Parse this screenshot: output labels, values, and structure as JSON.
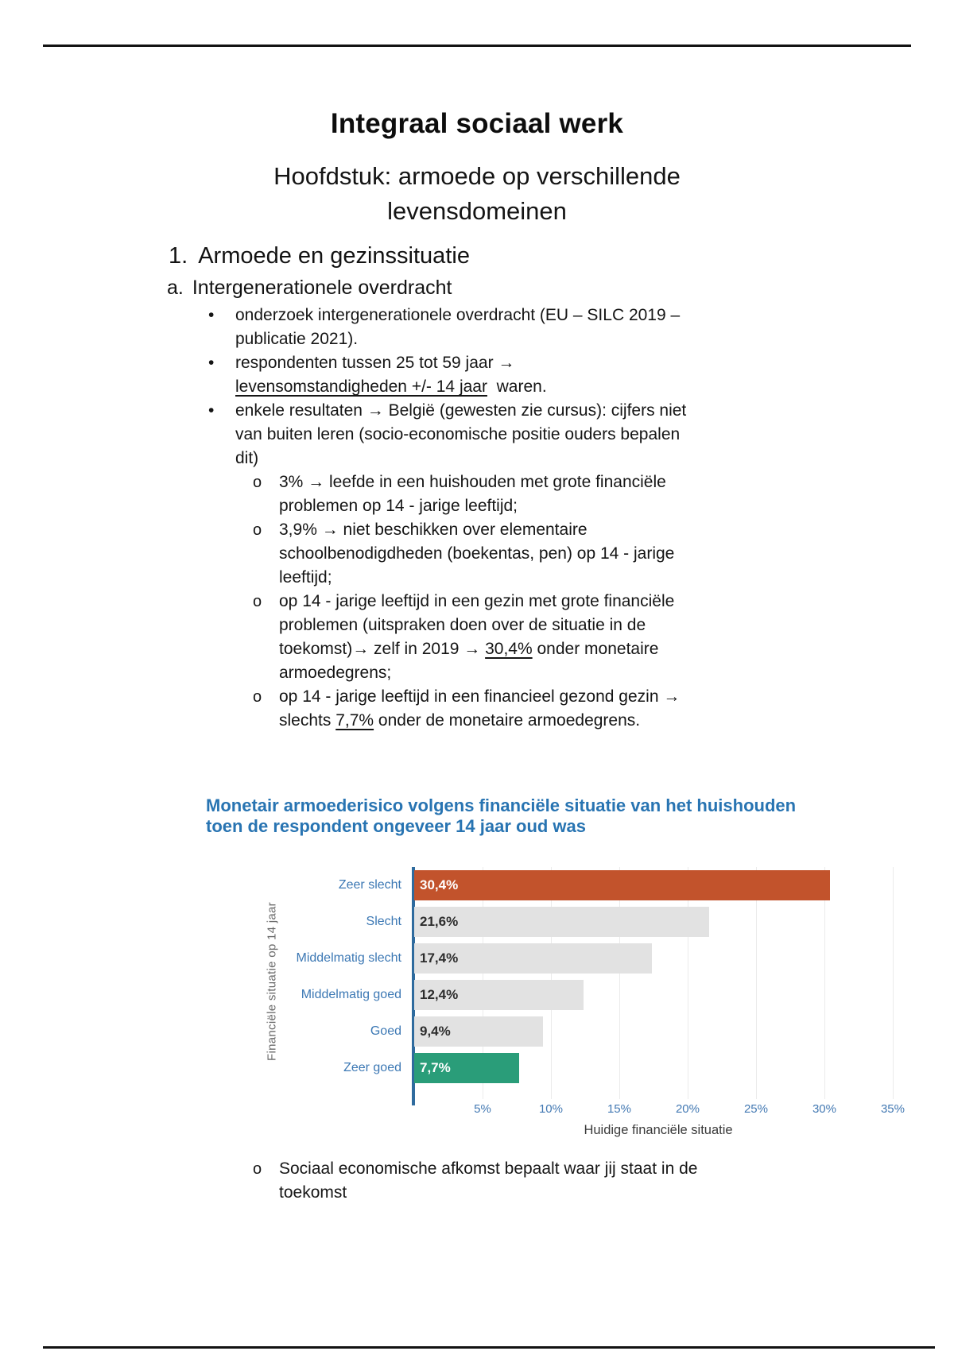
{
  "document": {
    "title": "Integraal sociaal werk",
    "subtitle": "Hoofdstuk: armoede op verschillende levensdomeinen",
    "section": {
      "number": "1.",
      "title": "Armoede en gezinssituatie"
    },
    "subsection": {
      "letter": "a.",
      "title": "Intergenerationele overdracht"
    },
    "bullet_marker": "•",
    "sub_bullet_marker": "o",
    "bullets": {
      "b1": "onderzoek intergenerationele overdracht (EU – SILC 2019 – publicatie 2021).",
      "b2_pre": "respondenten tussen 25 tot 59 jaar →",
      "b2_underlined": "levensomstandigheden +/- 14 jaar",
      "b2_post": "  waren.",
      "b3": "enkele resultaten → België (gewesten zie cursus): cijfers niet van buiten leren (socio-economische positie ouders bepalen dit)"
    },
    "sub_bullets": {
      "s1": "3% → leefde in een huishouden met grote financiële problemen op 14 - jarige leeftijd;",
      "s2": "3,9% → niet beschikken over elementaire schoolbenodigdheden (boekentas, pen) op 14 - jarige leeftijd;",
      "s3_pre": "op 14 - jarige leeftijd in een gezin met grote financiële problemen (uitspraken doen over de situatie in de toekomst)→ zelf in 2019 → ",
      "s3_underlined": "30,4%",
      "s3_post": " onder monetaire armoedegrens;",
      "s4_pre": "op 14 - jarige leeftijd in een financieel gezond gezin → slechts ",
      "s4_underlined": "7,7%",
      "s4_post": " onder de monetaire armoedegrens.",
      "s5": "Sociaal economische afkomst bepaalt waar jij staat in de toekomst"
    }
  },
  "chart_data": {
    "type": "bar",
    "orientation": "horizontal",
    "title": "Monetair armoederisico volgens financiële situatie van het huishouden toen de respondent ongeveer 14 jaar oud was",
    "categories": [
      "Zeer slecht",
      "Slecht",
      "Middelmatig slecht",
      "Middelmatig goed",
      "Goed",
      "Zeer goed"
    ],
    "values": [
      30.4,
      21.6,
      17.4,
      12.4,
      9.4,
      7.7
    ],
    "value_labels": [
      "30,4%",
      "21,6%",
      "17,4%",
      "12,4%",
      "9,4%",
      "7,7%"
    ],
    "bar_colors": [
      "#c2532c",
      "#e2e2e2",
      "#e2e2e2",
      "#e2e2e2",
      "#e2e2e2",
      "#2a9d79"
    ],
    "value_label_colors": [
      "#ffffff",
      "#2d2d2d",
      "#2d2d2d",
      "#2d2d2d",
      "#2d2d2d",
      "#ffffff"
    ],
    "xlabel": "Huidige financiële situatie",
    "ylabel": "Financiële situatie op 14 jaar",
    "x_ticks": [
      "5%",
      "10%",
      "15%",
      "20%",
      "25%",
      "30%",
      "35%"
    ],
    "x_tick_values": [
      5,
      10,
      15,
      20,
      25,
      30,
      35
    ],
    "xlim": [
      0,
      35.7
    ],
    "grid": true,
    "legend": "none",
    "colors": {
      "title": "#2874b2",
      "axis": "#2f6b9e",
      "grid": "#ebebeb",
      "category_label": "#3c78b4",
      "tick_label": "#4379b3",
      "xlabel": "#3a3a3a",
      "ylabel": "#6a6a6a"
    }
  }
}
